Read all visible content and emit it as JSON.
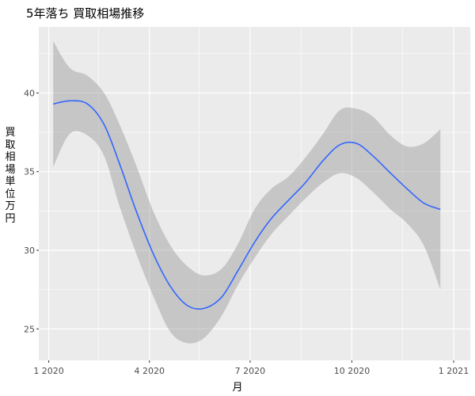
{
  "chart_data": {
    "type": "line",
    "title": "5年落ち 買取相場推移",
    "xlabel": "月",
    "ylabel": "買取相場　単位　万円",
    "x_tick_labels": [
      "1 2020",
      "4 2020",
      "7 2020",
      "10 2020",
      "1 2021"
    ],
    "y_tick_labels": [
      "25",
      "30",
      "35",
      "40"
    ],
    "ylim": [
      23.0,
      44.2
    ],
    "grid": true,
    "series": [
      {
        "type": "smooth",
        "color": "#3366FF",
        "x": [
          "2020-01-05",
          "2020-01-20",
          "2020-02-05",
          "2020-02-20",
          "2020-03-05",
          "2020-03-20",
          "2020-04-05",
          "2020-04-20",
          "2020-05-05",
          "2020-05-20",
          "2020-06-05",
          "2020-06-20",
          "2020-07-05",
          "2020-07-20",
          "2020-08-05",
          "2020-08-20",
          "2020-09-05",
          "2020-09-20",
          "2020-10-05",
          "2020-10-20",
          "2020-11-05",
          "2020-11-20",
          "2020-12-05",
          "2020-12-20"
        ],
        "y": [
          39.3,
          39.5,
          39.3,
          38.0,
          35.5,
          32.5,
          29.7,
          27.7,
          26.5,
          26.3,
          27.0,
          28.7,
          30.5,
          32.0,
          33.2,
          34.3,
          35.7,
          36.7,
          36.8,
          36.0,
          34.9,
          33.9,
          33.0,
          32.6
        ],
        "lower": [
          35.3,
          37.4,
          37.3,
          36.0,
          32.8,
          29.8,
          27.0,
          24.8,
          24.1,
          24.4,
          25.8,
          27.8,
          29.5,
          31.0,
          32.2,
          33.3,
          34.3,
          34.9,
          34.6,
          33.7,
          32.6,
          31.7,
          30.3,
          27.5
        ],
        "upper": [
          43.3,
          41.6,
          41.1,
          40.0,
          38.0,
          35.4,
          32.4,
          30.3,
          29.0,
          28.4,
          28.8,
          30.4,
          32.6,
          33.9,
          34.7,
          35.9,
          37.4,
          38.9,
          39.0,
          38.5,
          37.3,
          36.6,
          36.8,
          37.7
        ]
      }
    ]
  }
}
